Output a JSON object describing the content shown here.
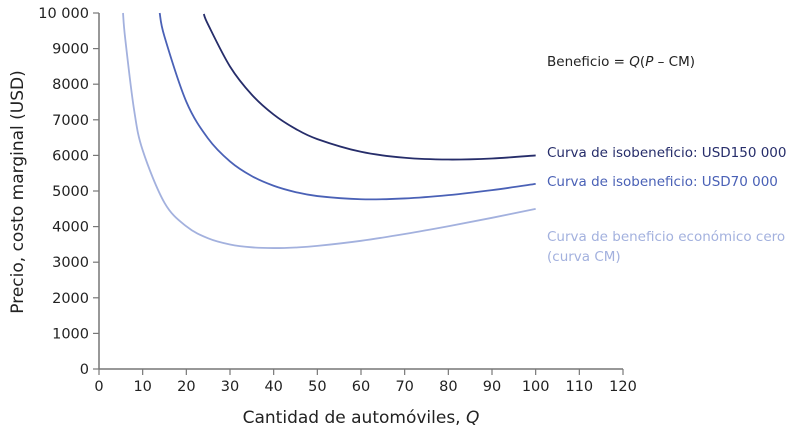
{
  "chart_data": {
    "type": "line",
    "xlabel": "Cantidad de automóviles, ",
    "xlabel_italic": "Q",
    "ylabel": "Precio, costo marginal (USD)",
    "xlim": [
      0,
      120
    ],
    "ylim": [
      0,
      10000
    ],
    "xticks": [
      0,
      10,
      20,
      30,
      40,
      50,
      60,
      70,
      80,
      90,
      100,
      110,
      120
    ],
    "yticks": [
      0,
      1000,
      2000,
      3000,
      4000,
      5000,
      6000,
      7000,
      8000,
      9000,
      10000
    ],
    "ytick_labels": [
      "0",
      "1000",
      "2000",
      "3000",
      "4000",
      "5000",
      "6000",
      "7000",
      "8000",
      "9000",
      "10 000"
    ],
    "grid": false,
    "formula": {
      "prefix": "Beneficio = ",
      "q": "Q",
      "open": "(",
      "p": "P",
      "rest": " – CM)"
    },
    "series": [
      {
        "name": "Curva de isobeneficio: USD150 000",
        "color": "#262d6a",
        "x": [
          24,
          25,
          30,
          35,
          40,
          45,
          50,
          60,
          70,
          80,
          90,
          100
        ],
        "y": [
          9972,
          9671,
          8498,
          7704,
          7147,
          6747,
          6458,
          6101,
          5934,
          5884,
          5914,
          5999
        ]
      },
      {
        "name": "Curva de isobeneficio: USD70 000",
        "color": "#4a61b6",
        "x": [
          13.9,
          15,
          20,
          25,
          30,
          35,
          40,
          45,
          50,
          60,
          70,
          80,
          90,
          100
        ],
        "y": [
          10000,
          9336,
          7507,
          6471,
          5831,
          5418,
          5147,
          4970,
          4858,
          4768,
          4791,
          4884,
          5025,
          5199
        ]
      },
      {
        "name": "Curva de beneficio económico cero",
        "name_line2": "(curva CM)",
        "color": "#a3b1de",
        "x": [
          5.5,
          6,
          8,
          10,
          15,
          20,
          25,
          30,
          35,
          40,
          45,
          50,
          60,
          70,
          80,
          90,
          100
        ],
        "y": [
          10000,
          9284,
          7308,
          6146,
          4669,
          4007,
          3671,
          3498,
          3418,
          3397,
          3414,
          3458,
          3601,
          3791,
          4009,
          4247,
          4499
        ]
      }
    ]
  }
}
